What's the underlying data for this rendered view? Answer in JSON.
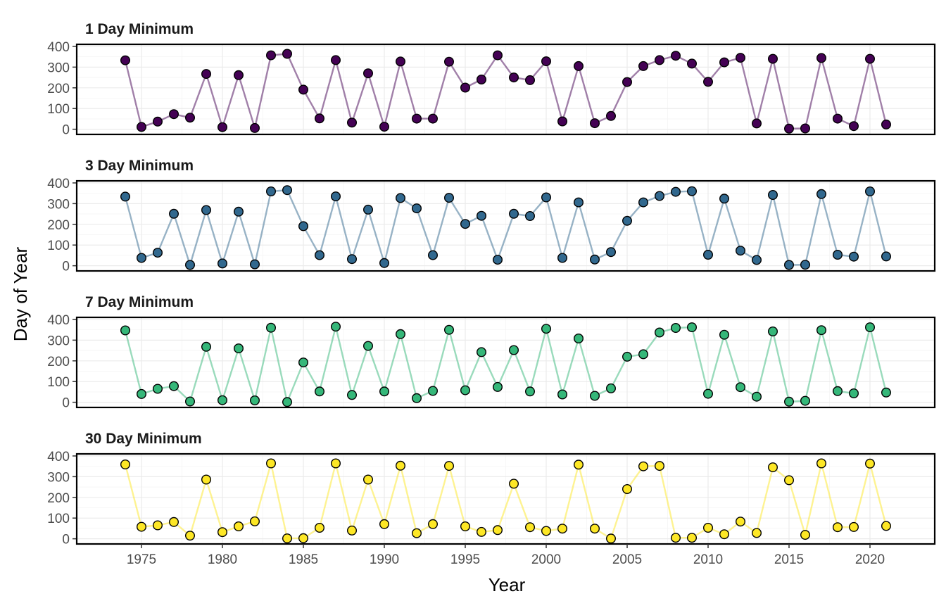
{
  "chart_data": {
    "type": "line",
    "xlabel": "Year",
    "ylabel": "Day of Year",
    "xlim": [
      1971,
      2024
    ],
    "x_ticks": [
      1975,
      1980,
      1985,
      1990,
      1995,
      2000,
      2005,
      2010,
      2015,
      2020
    ],
    "ylim": [
      -25,
      410
    ],
    "y_ticks": [
      0,
      100,
      200,
      300,
      400
    ],
    "grid": true,
    "legend": "none",
    "x": [
      1974,
      1975,
      1976,
      1977,
      1978,
      1979,
      1980,
      1981,
      1982,
      1983,
      1984,
      1985,
      1986,
      1987,
      1988,
      1989,
      1990,
      1991,
      1992,
      1993,
      1994,
      1995,
      1996,
      1997,
      1998,
      1999,
      2000,
      2001,
      2002,
      2003,
      2004,
      2005,
      2006,
      2007,
      2008,
      2009,
      2010,
      2011,
      2012,
      2013,
      2014,
      2015,
      2016,
      2017,
      2018,
      2019,
      2020,
      2021
    ],
    "series": [
      {
        "name": "1 Day Minimum",
        "color": "#440154",
        "values": [
          333,
          11,
          37,
          73,
          56,
          267,
          10,
          261,
          6,
          357,
          364,
          191,
          52,
          334,
          32,
          270,
          12,
          327,
          51,
          51,
          326,
          201,
          240,
          357,
          250,
          237,
          328,
          38,
          305,
          29,
          64,
          228,
          305,
          334,
          355,
          317,
          229,
          323,
          345,
          28,
          340,
          3,
          4,
          344,
          51,
          15,
          340,
          23
        ]
      },
      {
        "name": "3 Day Minimum",
        "color": "#31688E",
        "values": [
          334,
          38,
          63,
          251,
          4,
          269,
          11,
          261,
          7,
          359,
          365,
          191,
          51,
          335,
          32,
          271,
          13,
          327,
          277,
          51,
          328,
          202,
          241,
          29,
          251,
          240,
          330,
          38,
          306,
          30,
          66,
          217,
          306,
          337,
          357,
          360,
          53,
          324,
          73,
          28,
          342,
          4,
          5,
          346,
          53,
          44,
          359,
          45
        ]
      },
      {
        "name": "7 Day Minimum",
        "color": "#35B779",
        "values": [
          347,
          40,
          65,
          78,
          4,
          268,
          10,
          260,
          9,
          360,
          1,
          192,
          52,
          365,
          35,
          272,
          52,
          329,
          20,
          55,
          350,
          58,
          242,
          74,
          252,
          52,
          355,
          38,
          308,
          31,
          67,
          220,
          232,
          337,
          359,
          362,
          41,
          326,
          73,
          27,
          342,
          3,
          7,
          348,
          54,
          43,
          362,
          47
        ]
      },
      {
        "name": "30 Day Minimum",
        "color": "#FDE725",
        "values": [
          359,
          58,
          65,
          81,
          15,
          286,
          32,
          60,
          84,
          364,
          2,
          3,
          53,
          364,
          40,
          286,
          71,
          353,
          27,
          71,
          352,
          60,
          33,
          42,
          266,
          56,
          38,
          49,
          358,
          49,
          1,
          240,
          350,
          352,
          5,
          5,
          53,
          22,
          83,
          28,
          345,
          283,
          19,
          364,
          56,
          57,
          363,
          62
        ]
      }
    ]
  }
}
